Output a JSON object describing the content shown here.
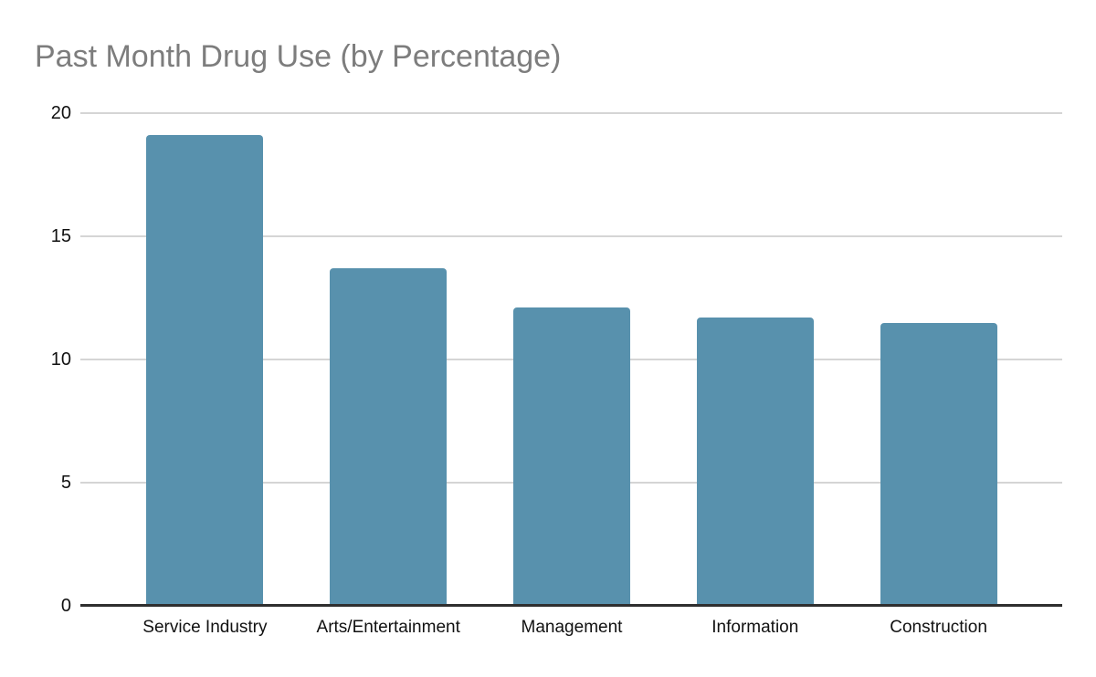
{
  "page": {
    "background": "#ffffff"
  },
  "chart_data": {
    "type": "bar",
    "title": "Past Month Drug Use (by Percentage)",
    "categories": [
      "Service Industry",
      "Arts/Entertainment",
      "Management",
      "Information",
      "Construction"
    ],
    "values": [
      19.1,
      13.7,
      12.1,
      11.7,
      11.5
    ],
    "xlabel": "",
    "ylabel": "",
    "ylim": [
      0,
      20
    ],
    "yticks": [
      0,
      5,
      10,
      15,
      20
    ],
    "grid": "horizontal",
    "legend": "none",
    "bar_color": "#5891ad",
    "title_color": "#7d7d7d",
    "axis_text_color": "#111111",
    "gridline_color": "#d5d5d5",
    "baseline_color": "#2f2f2f"
  }
}
